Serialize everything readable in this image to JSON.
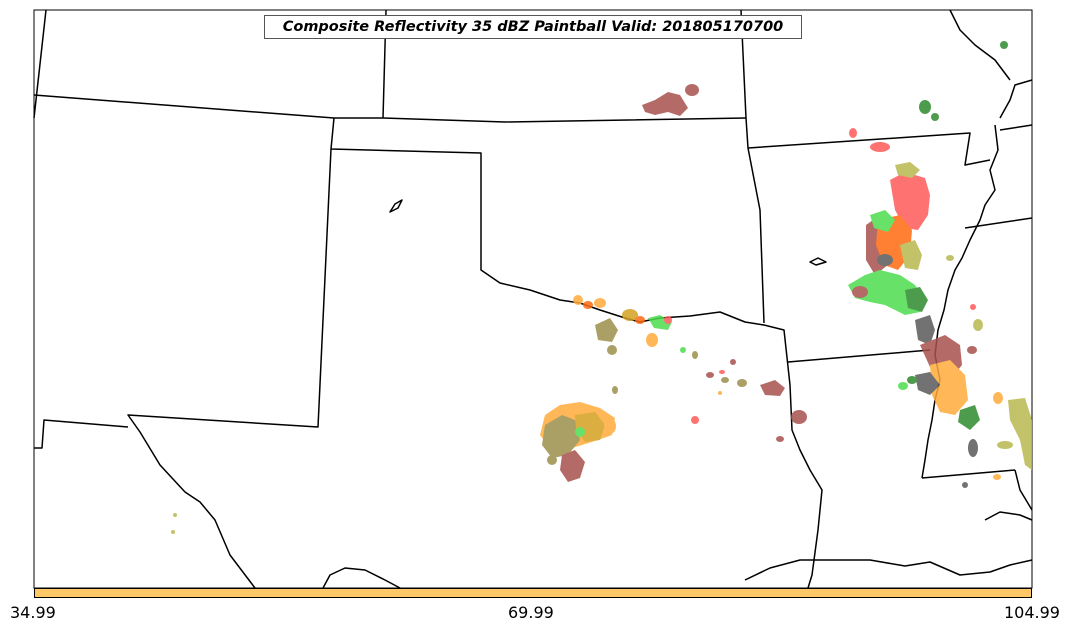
{
  "title": "Composite Reflectivity 35 dBZ Paintball Valid: 201805170700",
  "colorbar": {
    "color": "#ffc766",
    "ticks": [
      "34.99",
      "69.99",
      "104.99"
    ]
  },
  "colors": {
    "red": "#ff5a5a",
    "brown": "#a8524e",
    "orange": "#ffab3a",
    "olive": "#9c8f4a",
    "green": "#4ddc4d",
    "darkgreen": "#2e8b2e",
    "gray": "#5a5a5a",
    "yellowgreen": "#b8b850",
    "orangered": "#ff6a10",
    "goldbrown": "#d4a020"
  }
}
